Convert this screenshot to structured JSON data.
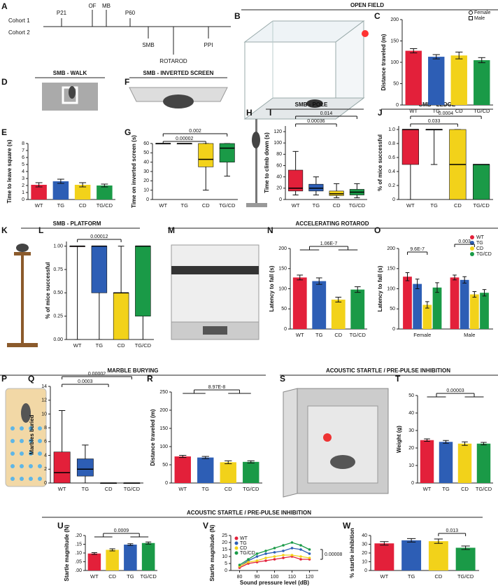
{
  "figure": {
    "panels": [
      "A",
      "B",
      "C",
      "D",
      "E",
      "F",
      "G",
      "H",
      "I",
      "J",
      "K",
      "L",
      "M",
      "N",
      "O",
      "P",
      "Q",
      "R",
      "S",
      "T",
      "U",
      "V",
      "W"
    ],
    "headers": [
      "OPEN FIELD",
      "SMB - WALK",
      "SMB - INVERTED SCREEN",
      "SMB - POLE",
      "SMB - LEDGE",
      "SMB - PLATFORM",
      "ACCELERATING ROTAROD",
      "MARBLE BURYING",
      "ACOUSTIC STARTLE / PRE-PULSE INHIBITION",
      "ACOUSTIC STARTLE / PRE-PULSE INHIBITION"
    ],
    "timeline": {
      "cohorts": [
        "Cohort 1",
        "Cohort 2"
      ],
      "events": [
        "P21",
        "OF",
        "MB",
        "P60",
        "SMB",
        "ROTAROD",
        "PPI"
      ]
    }
  },
  "chart_data": [
    {
      "type": "bar",
      "y_label": "Distance traveled (m)",
      "categories": [
        "WT",
        "TG",
        "CD",
        "TG/CD"
      ],
      "colors": [
        "#e3203a",
        "#2d5eb5",
        "#f2d21a",
        "#1a9a47"
      ],
      "values": [
        127,
        113,
        116,
        105
      ],
      "errors": [
        5,
        5,
        8,
        6
      ],
      "ylim": [
        0,
        200
      ],
      "yticks": [
        0,
        50,
        100,
        150,
        200
      ],
      "shape_legend": [
        "Female",
        "Male"
      ],
      "annotations": []
    },
    {
      "type": "bar",
      "y_label": "Time to leave square (s)",
      "categories": [
        "WT",
        "TG",
        "CD",
        "TG/CD"
      ],
      "colors": [
        "#e3203a",
        "#2d5eb5",
        "#f2d21a",
        "#1a9a47"
      ],
      "values": [
        2.1,
        2.6,
        2.1,
        2.0
      ],
      "errors": [
        0.3,
        0.3,
        0.3,
        0.2
      ],
      "ylim": [
        0,
        8
      ],
      "yticks": [
        0,
        1,
        2,
        3,
        4,
        5,
        6,
        7,
        8
      ],
      "annotations": []
    },
    {
      "type": "box",
      "y_label": "Time on inverted screen (s)",
      "categories": [
        "WT",
        "TG",
        "CD",
        "TG/CD"
      ],
      "colors": [
        "#e3203a",
        "#2d5eb5",
        "#f2d21a",
        "#1a9a47"
      ],
      "boxes": [
        {
          "min": 60,
          "q1": 60,
          "median": 60,
          "q3": 60,
          "max": 60
        },
        {
          "min": 60,
          "q1": 60,
          "median": 60,
          "q3": 60,
          "max": 60
        },
        {
          "min": 10,
          "q1": 35,
          "median": 43,
          "q3": 60,
          "max": 60
        },
        {
          "min": 25,
          "q1": 40,
          "median": 55,
          "q3": 60,
          "max": 60
        }
      ],
      "ylim": [
        0,
        60
      ],
      "yticks": [
        0,
        10,
        20,
        30,
        40,
        50,
        60
      ],
      "annotations": [
        {
          "label": "0.00002",
          "from": [
            0
          ],
          "to": [
            2
          ]
        },
        {
          "label": "0.002",
          "from": [
            0
          ],
          "to": [
            3
          ]
        }
      ]
    },
    {
      "type": "box",
      "y_label": "Time to climb down (s)",
      "categories": [
        "WT",
        "TG",
        "CD",
        "TG/CD"
      ],
      "colors": [
        "#e3203a",
        "#2d5eb5",
        "#f2d21a",
        "#1a9a47"
      ],
      "boxes": [
        {
          "min": 8,
          "q1": 15,
          "median": 20,
          "q3": 52,
          "max": 85
        },
        {
          "min": 8,
          "q1": 15,
          "median": 20,
          "q3": 27,
          "max": 40
        },
        {
          "min": 3,
          "q1": 7,
          "median": 10,
          "q3": 15,
          "max": 28
        },
        {
          "min": 3,
          "q1": 8,
          "median": 13,
          "q3": 18,
          "max": 28
        }
      ],
      "ylim": [
        0,
        130
      ],
      "yticks": [
        0,
        20,
        40,
        60,
        80,
        100,
        120
      ],
      "annotations": [
        {
          "label": "0.00036",
          "from": [
            0
          ],
          "to": [
            2
          ]
        },
        {
          "label": "0.014",
          "from": [
            0
          ],
          "to": [
            3
          ]
        }
      ]
    },
    {
      "type": "box",
      "y_label": "% of mice successful",
      "categories": [
        "WT",
        "TG",
        "CD",
        "TG/CD"
      ],
      "colors": [
        "#e3203a",
        "#2d5eb5",
        "#f2d21a",
        "#1a9a47"
      ],
      "boxes": [
        {
          "min": 0,
          "q1": 0.5,
          "median": 1,
          "q3": 1,
          "max": 1
        },
        {
          "min": 0.5,
          "q1": 1,
          "median": 1,
          "q3": 1,
          "max": 1
        },
        {
          "min": 0,
          "q1": 0,
          "median": 0.5,
          "q3": 1,
          "max": 1
        },
        {
          "min": 0,
          "q1": 0,
          "median": 0.5,
          "q3": 0.5,
          "max": 0.5
        }
      ],
      "ylim": [
        0,
        1.05
      ],
      "yticks": [
        0,
        0.2,
        0.4,
        0.6,
        0.8,
        {
          "value": 1,
          "label": "1.0"
        }
      ],
      "annotations": [
        {
          "label": "0.033",
          "from": [
            0
          ],
          "to": [
            2
          ]
        },
        {
          "label": "0.0004",
          "from": [
            0
          ],
          "to": [
            3
          ]
        }
      ]
    },
    {
      "type": "box",
      "y_label": "% of mice successful",
      "categories": [
        "WT",
        "TG",
        "CD",
        "TG/CD"
      ],
      "colors": [
        "#e3203a",
        "#2d5eb5",
        "#f2d21a",
        "#1a9a47"
      ],
      "boxes": [
        {
          "min": 0,
          "q1": 1,
          "median": 1,
          "q3": 1,
          "max": 1
        },
        {
          "min": 0,
          "q1": 0.5,
          "median": 1,
          "q3": 1,
          "max": 1
        },
        {
          "min": 0,
          "q1": 0,
          "median": 0.5,
          "q3": 0.5,
          "max": 1
        },
        {
          "min": 0,
          "q1": 0.25,
          "median": 1,
          "q3": 1,
          "max": 1
        }
      ],
      "ylim": [
        0,
        1.05
      ],
      "yticks": [
        {
          "value": 0,
          "label": "0.00"
        },
        {
          "value": 0.25,
          "label": "0.25"
        },
        {
          "value": 0.5,
          "label": "0.50"
        },
        {
          "value": 0.75,
          "label": "0.75"
        },
        {
          "value": 1,
          "label": "1.00"
        }
      ],
      "annotations": [
        {
          "label": "0.00012",
          "from": [
            0
          ],
          "to": [
            2
          ]
        }
      ]
    },
    {
      "type": "bar",
      "y_label": "Latency to fall (s)",
      "categories": [
        "WT",
        "TG",
        "CD",
        "TG/CD"
      ],
      "colors": [
        "#e3203a",
        "#2d5eb5",
        "#f2d21a",
        "#1a9a47"
      ],
      "values": [
        128,
        119,
        73,
        98
      ],
      "errors": [
        6,
        8,
        6,
        7
      ],
      "ylim": [
        0,
        200
      ],
      "yticks": [
        0,
        50,
        100,
        150,
        200
      ],
      "annotations": [
        {
          "label": "1.06E-7",
          "from": [
            0,
            1
          ],
          "to": [
            2,
            3
          ]
        }
      ]
    },
    {
      "type": "grouped_bar",
      "y_label": "Latency to fall (s)",
      "categories": [
        "Female",
        "Male"
      ],
      "legend": true,
      "series": [
        {
          "name": "WT",
          "color": "#e3203a",
          "values": [
            130,
            128
          ],
          "errors": [
            10,
            6
          ]
        },
        {
          "name": "TG",
          "color": "#2d5eb5",
          "values": [
            112,
            122
          ],
          "errors": [
            12,
            8
          ]
        },
        {
          "name": "CD",
          "color": "#f2d21a",
          "values": [
            60,
            86
          ],
          "errors": [
            8,
            7
          ]
        },
        {
          "name": "TG/CD",
          "color": "#1a9a47",
          "values": [
            103,
            90
          ],
          "errors": [
            12,
            8
          ]
        }
      ],
      "ylim": [
        0,
        200
      ],
      "yticks": [
        0,
        50,
        100,
        150,
        200
      ],
      "annotations": [
        {
          "label": "9.6E-7",
          "group": 0,
          "from": [
            0
          ],
          "to": [
            2
          ]
        },
        {
          "label": "0.003",
          "group": 1,
          "from": [
            0
          ],
          "to": [
            2
          ]
        }
      ]
    },
    {
      "type": "box",
      "y_label": "Marbles buried",
      "categories": [
        "WT",
        "TG",
        "CD",
        "TG/CD"
      ],
      "colors": [
        "#e3203a",
        "#2d5eb5",
        "#f2d21a",
        "#1a9a47"
      ],
      "boxes": [
        {
          "min": 0,
          "q1": 0,
          "median": 1.5,
          "q3": 4.5,
          "max": 10.5
        },
        {
          "min": 0,
          "q1": 1,
          "median": 2,
          "q3": 3.5,
          "max": 5.5
        },
        {
          "min": 0,
          "q1": 0,
          "median": 0,
          "q3": 0,
          "max": 0
        },
        {
          "min": 0,
          "q1": 0,
          "median": 0,
          "q3": 0,
          "max": 0
        }
      ],
      "ylim": [
        0,
        14
      ],
      "yticks": [
        0,
        2,
        4,
        6,
        8,
        10,
        12,
        14
      ],
      "annotations": [
        {
          "label": "0.0003",
          "from": [
            0
          ],
          "to": [
            2
          ]
        },
        {
          "label": "0.00002",
          "from": [
            0
          ],
          "to": [
            3
          ]
        }
      ]
    },
    {
      "type": "bar",
      "y_label": "Distance traveled (m)",
      "categories": [
        "WT",
        "TG",
        "CD",
        "TG/CD"
      ],
      "colors": [
        "#e3203a",
        "#2d5eb5",
        "#f2d21a",
        "#1a9a47"
      ],
      "values": [
        73,
        70,
        57,
        58
      ],
      "errors": [
        3,
        3,
        4,
        3
      ],
      "ylim": [
        0,
        250
      ],
      "yticks": [
        0,
        50,
        100,
        150,
        200,
        250
      ],
      "annotations": [
        {
          "label": "8.97E-8",
          "from": [
            0,
            1
          ],
          "to": [
            2,
            3
          ]
        }
      ]
    },
    {
      "type": "bar",
      "y_label": "Weight (g)",
      "categories": [
        "WT",
        "TG",
        "CD",
        "TG/CD"
      ],
      "colors": [
        "#e3203a",
        "#2d5eb5",
        "#f2d21a",
        "#1a9a47"
      ],
      "values": [
        24.5,
        23.5,
        22.5,
        22.5
      ],
      "errors": [
        0.7,
        0.8,
        1.0,
        0.7
      ],
      "ylim": [
        0,
        50
      ],
      "yticks": [
        0,
        10,
        20,
        30,
        40,
        50
      ],
      "annotations": [
        {
          "label": "0.00003",
          "from": [
            0,
            1
          ],
          "to": [
            2,
            3
          ]
        }
      ]
    },
    {
      "type": "bar",
      "y_label": "Startle magnitude (N)",
      "categories": [
        "WT",
        "CD",
        "TG",
        "TG/CD"
      ],
      "colors": [
        "#e3203a",
        "#f2d21a",
        "#2d5eb5",
        "#1a9a47"
      ],
      "values": [
        0.097,
        0.118,
        0.148,
        0.157
      ],
      "errors": [
        0.005,
        0.006,
        0.005,
        0.006
      ],
      "ylim": [
        0,
        0.2
      ],
      "yticks": [
        {
          "value": 0,
          "label": ".00"
        },
        {
          "value": 0.05,
          "label": ".05"
        },
        {
          "value": 0.1,
          "label": ".10"
        },
        {
          "value": 0.15,
          "label": ".15"
        },
        {
          "value": 0.2,
          "label": ".20"
        }
      ],
      "annotations": [
        {
          "label": "0.0009",
          "from": [
            0,
            1
          ],
          "to": [
            2,
            3
          ]
        }
      ]
    },
    {
      "type": "line",
      "y_label": "Startle magnitude (N)",
      "x_label": "Sound pressure level (dB)",
      "legend": true,
      "x": [
        80,
        85,
        90,
        95,
        100,
        105,
        110,
        115,
        120
      ],
      "series": [
        {
          "name": "WT",
          "color": "#e3203a",
          "values": [
            2,
            5,
            6,
            7,
            8,
            9,
            10,
            8,
            8
          ]
        },
        {
          "name": "TG",
          "color": "#2d5eb5",
          "values": [
            3,
            7,
            10,
            12,
            13,
            14,
            16,
            15,
            12
          ]
        },
        {
          "name": "CD",
          "color": "#f2d21a",
          "values": [
            3,
            6,
            7,
            9,
            10,
            11,
            11,
            10,
            9
          ]
        },
        {
          "name": "TG/CD",
          "color": "#1a9a47",
          "values": [
            4,
            8,
            12,
            14,
            16,
            18,
            20,
            18,
            15
          ]
        }
      ],
      "xlim": [
        75,
        125
      ],
      "xticks": [
        80,
        90,
        100,
        110,
        120
      ],
      "ylim": [
        0,
        25
      ],
      "yticks": [
        0,
        5,
        10,
        15,
        20,
        25
      ],
      "side_annotation": "0.00008",
      "annotations": []
    },
    {
      "type": "bar",
      "y_label": "% startle inhibition",
      "categories": [
        "WT",
        "TG",
        "CD",
        "TG/CD"
      ],
      "colors": [
        "#e3203a",
        "#2d5eb5",
        "#f2d21a",
        "#1a9a47"
      ],
      "values": [
        31,
        34.5,
        33.5,
        26
      ],
      "errors": [
        2,
        2,
        2.5,
        2
      ],
      "ylim": [
        0,
        40
      ],
      "yticks": [
        0,
        10,
        20,
        30,
        40
      ],
      "annotations": [
        {
          "label": "0.013",
          "from": [
            2
          ],
          "to": [
            3
          ]
        }
      ]
    }
  ]
}
